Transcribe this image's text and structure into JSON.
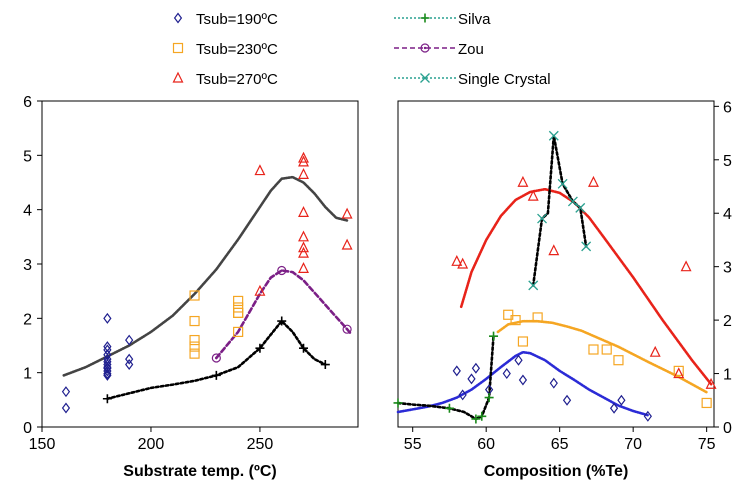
{
  "chart_data": [
    {
      "type": "scatter",
      "xlabel": "Substrate temp. (ºC)",
      "ylabel": "",
      "xlim": [
        150,
        295
      ],
      "ylim": [
        0,
        6
      ],
      "xticks": [
        150,
        200,
        250
      ],
      "yticks": [
        0,
        1,
        2,
        3,
        4,
        5,
        6
      ],
      "y_axis_side": "left",
      "grid": false,
      "series": [
        {
          "name": "Tsub=190ºC",
          "marker": "diamond",
          "color": "#1f1f8f",
          "x": [
            161,
            161,
            180,
            180,
            180,
            180,
            180,
            180,
            180,
            180,
            180,
            180,
            180,
            180,
            190,
            190,
            190
          ],
          "y": [
            0.35,
            0.65,
            0.98,
            1.03,
            1.08,
            1.15,
            1.2,
            1.25,
            1.33,
            1.42,
            1.48,
            2.0,
            1.1,
            0.95,
            1.15,
            1.25,
            1.6
          ]
        },
        {
          "name": "Tsub=230ºC",
          "marker": "square",
          "color": "#f5a623",
          "x": [
            220,
            220,
            220,
            220,
            220,
            240,
            240,
            240,
            240,
            240
          ],
          "y": [
            1.35,
            1.48,
            1.6,
            1.95,
            2.42,
            1.75,
            2.1,
            2.2,
            2.32,
            2.1
          ]
        },
        {
          "name": "Tsub=270ºC",
          "marker": "triangle",
          "color": "#e8231a",
          "x": [
            250,
            250,
            270,
            270,
            270,
            270,
            270,
            270,
            270,
            270,
            290,
            290
          ],
          "y": [
            2.5,
            4.72,
            4.95,
            4.88,
            4.65,
            3.95,
            3.5,
            3.3,
            3.2,
            2.92,
            3.92,
            3.35
          ]
        },
        {
          "name": "",
          "line_style": "solid",
          "color": "#444444",
          "x": [
            160,
            170,
            180,
            190,
            200,
            210,
            220,
            230,
            240,
            250,
            255,
            260,
            265,
            270,
            275,
            280,
            285,
            290
          ],
          "y": [
            0.95,
            1.1,
            1.3,
            1.5,
            1.75,
            2.05,
            2.45,
            2.9,
            3.45,
            4.05,
            4.35,
            4.57,
            4.6,
            4.5,
            4.3,
            4.05,
            3.85,
            3.8
          ]
        },
        {
          "name": "",
          "line_style": "dashed",
          "marker": "circle",
          "color": "#7b1f86",
          "x": [
            230,
            240,
            250,
            255,
            260,
            265,
            270,
            280,
            290,
            292
          ],
          "y": [
            1.27,
            1.75,
            2.45,
            2.75,
            2.88,
            2.85,
            2.7,
            2.25,
            1.8,
            1.7
          ],
          "markers_at": [
            0,
            4,
            8
          ]
        },
        {
          "name": "",
          "line_style": "dotted",
          "marker": "plus",
          "color": "#000000",
          "x": [
            180,
            190,
            200,
            210,
            220,
            230,
            240,
            250,
            255,
            260,
            265,
            270,
            275,
            280
          ],
          "y": [
            0.52,
            0.62,
            0.72,
            0.78,
            0.85,
            0.95,
            1.1,
            1.45,
            1.7,
            1.95,
            1.75,
            1.45,
            1.25,
            1.15
          ],
          "markers_at": [
            0,
            5,
            7,
            9,
            11,
            13
          ]
        }
      ]
    },
    {
      "type": "scatter",
      "xlabel": "Composition (%Te)",
      "ylabel": "",
      "xlim": [
        54,
        75.5
      ],
      "ylim": [
        0,
        6.1
      ],
      "xticks": [
        55,
        60,
        65,
        70,
        75
      ],
      "yticks": [
        0,
        1,
        2,
        3,
        4,
        5,
        6
      ],
      "y_axis_side": "right",
      "grid": false,
      "series": [
        {
          "name": "Tsub=190ºC",
          "marker": "diamond",
          "color": "#1f1f8f",
          "x": [
            58,
            58.4,
            59,
            59.3,
            60.2,
            61.4,
            62.2,
            62.5,
            64.6,
            65.5,
            68.7,
            69.2,
            71
          ],
          "y": [
            1.05,
            0.6,
            0.9,
            1.1,
            0.7,
            1.0,
            1.25,
            0.88,
            0.82,
            0.5,
            0.35,
            0.5,
            0.2
          ]
        },
        {
          "name": "Tsub=230ºC",
          "marker": "square",
          "color": "#f5a623",
          "x": [
            61.5,
            62,
            62.5,
            63.5,
            67.3,
            68.2,
            69,
            73.1,
            75
          ],
          "y": [
            2.1,
            2.0,
            1.6,
            2.05,
            1.45,
            1.45,
            1.25,
            1.05,
            0.45
          ]
        },
        {
          "name": "Tsub=270ºC",
          "marker": "triangle",
          "color": "#e8231a",
          "x": [
            58,
            58.4,
            62.5,
            63.2,
            64.6,
            67.3,
            71.5,
            73.1,
            73.6,
            75.3
          ],
          "y": [
            3.1,
            3.05,
            4.58,
            4.32,
            3.3,
            4.58,
            1.4,
            1.0,
            3.0,
            0.8
          ]
        },
        {
          "name": "",
          "line_style": "solid",
          "color": "#e8231a",
          "x": [
            58.3,
            59,
            60,
            61,
            62,
            63,
            64,
            65,
            66,
            67,
            68,
            70,
            72,
            74,
            75.3
          ],
          "y": [
            2.25,
            2.9,
            3.5,
            3.95,
            4.25,
            4.4,
            4.45,
            4.38,
            4.2,
            3.92,
            3.55,
            2.8,
            2.0,
            1.25,
            0.8
          ]
        },
        {
          "name": "",
          "line_style": "solid",
          "color": "#f5a623",
          "x": [
            60.8,
            61.5,
            62.5,
            63.5,
            64.5,
            65.5,
            66.5,
            67.5,
            69,
            71,
            73,
            75
          ],
          "y": [
            1.78,
            1.92,
            1.98,
            1.98,
            1.95,
            1.88,
            1.8,
            1.68,
            1.5,
            1.22,
            0.95,
            0.65
          ]
        },
        {
          "name": "",
          "line_style": "solid",
          "color": "#2b2bd6",
          "x": [
            54,
            55,
            56,
            57,
            58,
            59,
            60,
            61,
            62,
            62.5,
            63,
            64,
            65,
            66,
            67,
            68,
            69,
            70,
            71
          ],
          "y": [
            0.28,
            0.33,
            0.38,
            0.45,
            0.55,
            0.7,
            0.9,
            1.12,
            1.33,
            1.4,
            1.38,
            1.25,
            1.05,
            0.88,
            0.7,
            0.55,
            0.4,
            0.3,
            0.22
          ]
        },
        {
          "name": "Silva",
          "line_style": "dotted",
          "marker": "plus",
          "color": "#1a8a1a",
          "line_color": "#000000",
          "x": [
            54,
            55,
            56,
            57.5,
            58.5,
            59.3,
            59.7,
            60.2,
            60.5
          ],
          "y": [
            0.45,
            0.42,
            0.4,
            0.35,
            0.28,
            0.15,
            0.2,
            0.55,
            1.7
          ],
          "markers_at": [
            0,
            3,
            5,
            6,
            7,
            8
          ]
        },
        {
          "name": "Single Crystal",
          "line_style": "dotted",
          "marker": "x",
          "color": "#2aa190",
          "line_color": "#000000",
          "x": [
            63.2,
            63.8,
            64.2,
            64.6,
            65.2,
            65.9,
            66.4,
            66.8
          ],
          "y": [
            2.65,
            3.9,
            4.0,
            5.45,
            4.55,
            4.22,
            4.1,
            3.38
          ],
          "markers_at": [
            0,
            1,
            3,
            4,
            5,
            6,
            7
          ]
        }
      ]
    }
  ],
  "legend": {
    "left": [
      {
        "label": "Tsub=190ºC",
        "marker": "diamond",
        "color": "#1f1f8f"
      },
      {
        "label": "Tsub=230ºC",
        "marker": "square",
        "color": "#f5a623"
      },
      {
        "label": "Tsub=270ºC",
        "marker": "triangle",
        "color": "#e8231a"
      }
    ],
    "right": [
      {
        "label": "Silva",
        "marker": "plus",
        "color": "#1a8a1a",
        "line_color": "#2aa190"
      },
      {
        "label": "Zou",
        "marker": "circle",
        "color": "#7b1f86",
        "line_color": "#7b1f86"
      },
      {
        "label": "Single Crystal",
        "marker": "x",
        "color": "#2aa190",
        "line_color": "#2aa190"
      }
    ]
  }
}
